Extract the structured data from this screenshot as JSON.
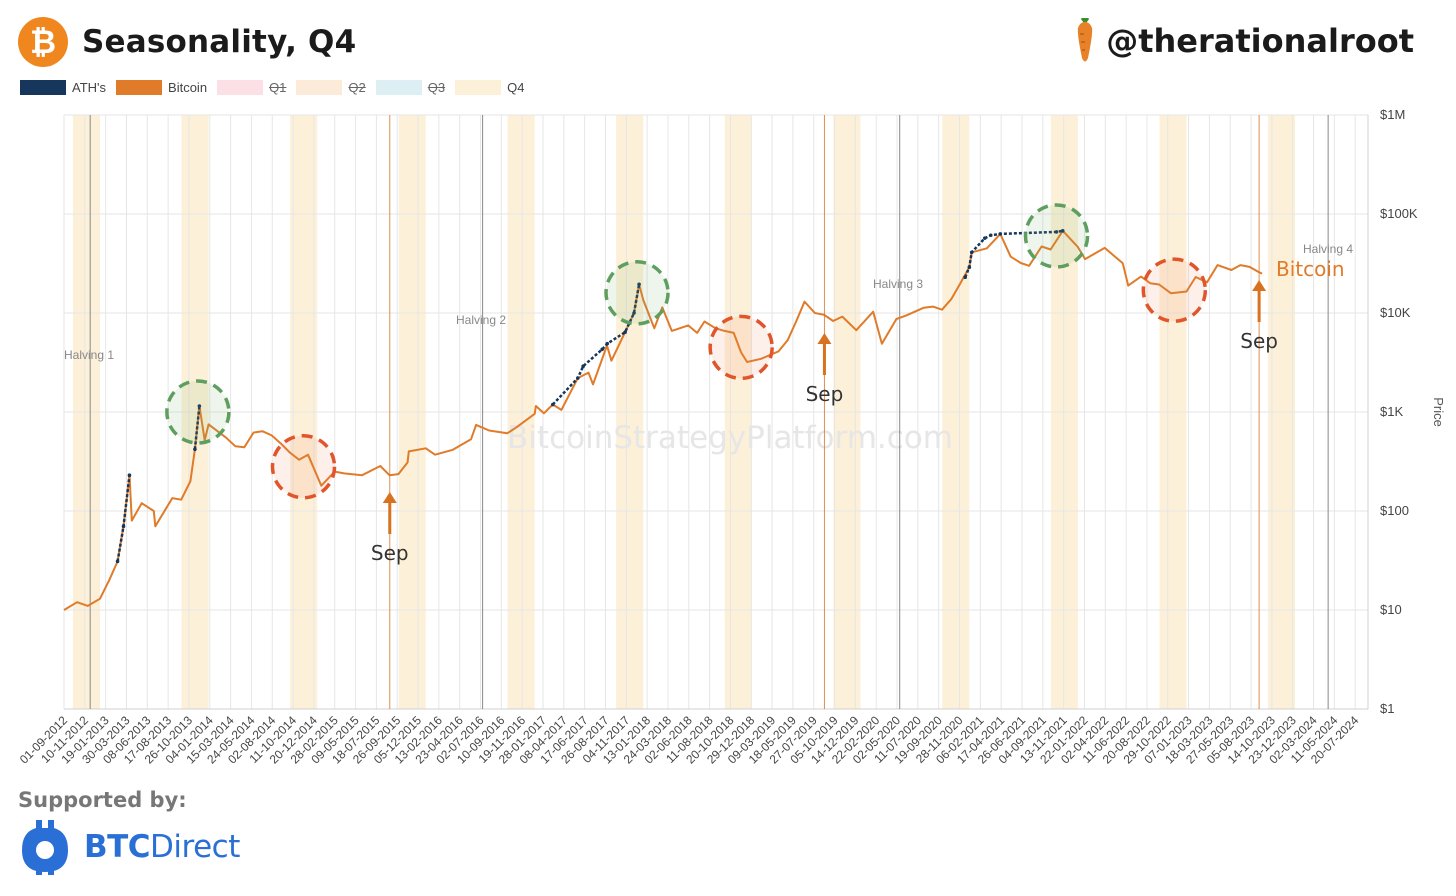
{
  "header": {
    "logo_icon": "bitcoin-icon",
    "logo_glyph": "₿",
    "title": "Seasonality, Q4",
    "handle_icon": "carrot-icon",
    "handle": "@therationalroot"
  },
  "legend": {
    "items": [
      {
        "label": "ATH's",
        "color": "#16365C",
        "hidden": false
      },
      {
        "label": "Bitcoin",
        "color": "#E07B2A",
        "hidden": false
      },
      {
        "label": "Q1",
        "color": "#FBE0E6",
        "hidden": true
      },
      {
        "label": "Q2",
        "color": "#FDEBD9",
        "hidden": true
      },
      {
        "label": "Q3",
        "color": "#DDEFF3",
        "hidden": true
      },
      {
        "label": "Q4",
        "color": "#FDF0D8",
        "hidden": false
      }
    ]
  },
  "watermark": "BitcoinStrategyPlatform.com",
  "footer": {
    "supported_by": "Supported by:",
    "sponsor_icon": "btc-direct-logo-icon",
    "sponsor_bold": "BTC",
    "sponsor_light": "Direct"
  },
  "colors": {
    "bitcoin": "#E07B2A",
    "ath": "#16365C",
    "q4_band": "#FDF0D8",
    "green_circle": "#5E9E5E",
    "red_circle": "#E0552A",
    "arrow": "#D9721E",
    "halving_line": "#888888"
  },
  "chart_data": {
    "type": "line",
    "title": "Seasonality, Q4",
    "ylabel": "Price",
    "yscale": "log",
    "ylim": [
      1,
      1000000
    ],
    "xlim": [
      "2012-09-01",
      "2024-09-01"
    ],
    "grid": true,
    "legend_position": "top-left",
    "y_tick_labels": [
      "$1",
      "$10",
      "$100",
      "$1K",
      "$10K",
      "$100K",
      "$1M"
    ],
    "y_tick_values": [
      1,
      10,
      100,
      1000,
      10000,
      100000,
      1000000
    ],
    "x_tick_labels": [
      "01-09-2012",
      "10-11-2012",
      "19-01-2013",
      "30-03-2013",
      "08-06-2013",
      "17-08-2013",
      "26-10-2013",
      "04-01-2014",
      "15-03-2014",
      "24-05-2014",
      "02-08-2014",
      "11-10-2014",
      "20-12-2014",
      "28-02-2015",
      "09-05-2015",
      "18-07-2015",
      "26-09-2015",
      "05-12-2015",
      "13-02-2016",
      "23-04-2016",
      "02-07-2016",
      "10-09-2016",
      "19-11-2016",
      "28-01-2017",
      "08-04-2017",
      "17-06-2017",
      "26-08-2017",
      "04-11-2017",
      "13-01-2018",
      "24-03-2018",
      "02-06-2018",
      "11-08-2018",
      "20-10-2018",
      "29-12-2018",
      "09-03-2019",
      "18-05-2019",
      "27-07-2019",
      "05-10-2019",
      "14-12-2019",
      "22-02-2020",
      "02-05-2020",
      "11-07-2020",
      "19-09-2020",
      "28-11-2020",
      "06-02-2021",
      "17-04-2021",
      "26-06-2021",
      "04-09-2021",
      "13-11-2021",
      "22-01-2022",
      "02-04-2022",
      "11-06-2022",
      "20-08-2022",
      "29-10-2022",
      "07-01-2023",
      "18-03-2023",
      "27-05-2023",
      "05-08-2023",
      "14-10-2023",
      "23-12-2023",
      "02-03-2024",
      "11-05-2024",
      "20-07-2024"
    ],
    "x_tick_dates": [
      "2012-09-01",
      "2012-11-10",
      "2013-01-19",
      "2013-03-30",
      "2013-06-08",
      "2013-08-17",
      "2013-10-26",
      "2014-01-04",
      "2014-03-15",
      "2014-05-24",
      "2014-08-02",
      "2014-10-11",
      "2014-12-20",
      "2015-02-28",
      "2015-05-09",
      "2015-07-18",
      "2015-09-26",
      "2015-12-05",
      "2016-02-13",
      "2016-04-23",
      "2016-07-02",
      "2016-09-10",
      "2016-11-19",
      "2017-01-28",
      "2017-04-08",
      "2017-06-17",
      "2017-08-26",
      "2017-11-04",
      "2018-01-13",
      "2018-03-24",
      "2018-06-02",
      "2018-08-11",
      "2018-10-20",
      "2018-12-29",
      "2019-03-09",
      "2019-05-18",
      "2019-07-27",
      "2019-10-05",
      "2019-12-14",
      "2020-02-22",
      "2020-05-02",
      "2020-07-11",
      "2020-09-19",
      "2020-11-28",
      "2021-02-06",
      "2021-04-17",
      "2021-06-26",
      "2021-09-04",
      "2021-11-13",
      "2022-01-22",
      "2022-04-02",
      "2022-06-11",
      "2022-08-20",
      "2022-10-29",
      "2023-01-07",
      "2023-03-18",
      "2023-05-27",
      "2023-08-05",
      "2023-10-14",
      "2023-12-23",
      "2024-03-02",
      "2024-05-11",
      "2024-07-20"
    ],
    "q4_bands": [
      [
        "2012-10-01",
        "2012-12-31"
      ],
      [
        "2013-10-01",
        "2013-12-31"
      ],
      [
        "2014-10-01",
        "2014-12-31"
      ],
      [
        "2015-10-01",
        "2015-12-31"
      ],
      [
        "2016-10-01",
        "2016-12-31"
      ],
      [
        "2017-10-01",
        "2017-12-31"
      ],
      [
        "2018-10-01",
        "2018-12-31"
      ],
      [
        "2019-10-01",
        "2019-12-31"
      ],
      [
        "2020-10-01",
        "2020-12-31"
      ],
      [
        "2021-10-01",
        "2021-12-31"
      ],
      [
        "2022-10-01",
        "2022-12-31"
      ],
      [
        "2023-10-01",
        "2023-12-31"
      ]
    ],
    "halvings": [
      {
        "label": "Halving 1",
        "date": "2012-11-28"
      },
      {
        "label": "Halving 2",
        "date": "2016-07-09"
      },
      {
        "label": "Halving 3",
        "date": "2020-05-11"
      },
      {
        "label": "Halving 4",
        "date": "2024-04-20"
      }
    ],
    "sep_markers": [
      {
        "label": "Sep",
        "date": "2015-09-01"
      },
      {
        "label": "Sep",
        "date": "2019-09-01"
      },
      {
        "label": "Sep",
        "date": "2023-09-01"
      }
    ],
    "green_circles": [
      {
        "date": "2013-11-25",
        "value": 1000
      },
      {
        "date": "2017-12-10",
        "value": 16000
      },
      {
        "date": "2021-10-20",
        "value": 60000
      }
    ],
    "red_circles": [
      {
        "date": "2014-11-15",
        "value": 280
      },
      {
        "date": "2018-11-25",
        "value": 4500
      },
      {
        "date": "2022-11-20",
        "value": 17000
      }
    ],
    "series_label": "Bitcoin",
    "series": [
      {
        "name": "Bitcoin",
        "color": "#E07B2A",
        "x": [
          "2012-09-01",
          "2012-10-15",
          "2012-11-20",
          "2012-12-31",
          "2013-01-31",
          "2013-02-28",
          "2013-03-20",
          "2013-04-09",
          "2013-04-17",
          "2013-05-20",
          "2013-06-30",
          "2013-07-05",
          "2013-08-31",
          "2013-09-30",
          "2013-10-31",
          "2013-11-15",
          "2013-11-30",
          "2013-12-18",
          "2013-12-31",
          "2014-02-28",
          "2014-03-31",
          "2014-04-30",
          "2014-05-31",
          "2014-06-30",
          "2014-07-31",
          "2014-08-31",
          "2014-09-30",
          "2014-10-31",
          "2014-11-30",
          "2015-01-14",
          "2015-02-28",
          "2015-03-31",
          "2015-05-31",
          "2015-07-31",
          "2015-08-31",
          "2015-09-30",
          "2015-10-31",
          "2015-11-04",
          "2015-12-31",
          "2016-01-31",
          "2016-03-31",
          "2016-05-31",
          "2016-06-17",
          "2016-07-31",
          "2016-09-30",
          "2016-10-31",
          "2016-12-31",
          "2017-01-04",
          "2017-01-31",
          "2017-03-02",
          "2017-03-31",
          "2017-05-25",
          "2017-06-30",
          "2017-07-15",
          "2017-08-31",
          "2017-09-15",
          "2017-10-31",
          "2017-11-30",
          "2017-12-17",
          "2017-12-31",
          "2018-02-06",
          "2018-03-05",
          "2018-04-06",
          "2018-05-31",
          "2018-06-30",
          "2018-07-25",
          "2018-08-31",
          "2018-09-30",
          "2018-10-31",
          "2018-11-25",
          "2018-12-15",
          "2019-01-31",
          "2019-03-31",
          "2019-04-30",
          "2019-05-31",
          "2019-06-26",
          "2019-07-31",
          "2019-08-31",
          "2019-09-30",
          "2019-10-31",
          "2019-12-17",
          "2020-02-12",
          "2020-03-12",
          "2020-04-30",
          "2020-05-31",
          "2020-07-31",
          "2020-08-31",
          "2020-09-30",
          "2020-10-31",
          "2020-11-30",
          "2020-12-31",
          "2021-01-08",
          "2021-02-28",
          "2021-04-14",
          "2021-05-19",
          "2021-06-22",
          "2021-07-20",
          "2021-08-31",
          "2021-09-30",
          "2021-11-10",
          "2021-12-31",
          "2022-01-24",
          "2022-03-31",
          "2022-05-31",
          "2022-06-18",
          "2022-07-31",
          "2022-08-31",
          "2022-09-30",
          "2022-11-09",
          "2022-12-31",
          "2023-01-31",
          "2023-03-10",
          "2023-04-14",
          "2023-05-31",
          "2023-06-30",
          "2023-07-31",
          "2023-08-31",
          "2023-09-11"
        ],
        "values": [
          10,
          12,
          11,
          13,
          20,
          31,
          70,
          230,
          80,
          120,
          100,
          70,
          135,
          130,
          200,
          420,
          1150,
          520,
          750,
          550,
          450,
          440,
          620,
          640,
          580,
          480,
          390,
          330,
          370,
          180,
          250,
          240,
          230,
          285,
          230,
          236,
          310,
          400,
          430,
          370,
          415,
          530,
          740,
          650,
          610,
          700,
          960,
          1150,
          970,
          1190,
          1050,
          2200,
          2500,
          1900,
          4700,
          3300,
          6400,
          10000,
          19500,
          13500,
          7000,
          11400,
          6600,
          7500,
          6300,
          8200,
          7000,
          6600,
          6300,
          4000,
          3200,
          3450,
          4100,
          5300,
          8500,
          13000,
          10000,
          9600,
          8300,
          9200,
          6700,
          10300,
          4900,
          8700,
          9400,
          11300,
          11600,
          10800,
          13800,
          19700,
          29000,
          41000,
          45000,
          63000,
          37000,
          32000,
          30000,
          47000,
          43800,
          67600,
          46300,
          35000,
          45500,
          31800,
          18900,
          23300,
          20000,
          19400,
          15800,
          16500,
          23100,
          20400,
          30500,
          27200,
          30500,
          29200,
          25900,
          25000
        ]
      },
      {
        "name": "ATH's",
        "color": "#16365C",
        "x": [
          "2013-02-28",
          "2013-03-20",
          "2013-04-09",
          "2013-11-15",
          "2013-11-30",
          "2017-03-02",
          "2017-05-25",
          "2017-06-12",
          "2017-08-15",
          "2017-09-01",
          "2017-10-31",
          "2017-11-30",
          "2017-12-17",
          "2020-12-17",
          "2020-12-31",
          "2021-01-08",
          "2021-02-21",
          "2021-03-13",
          "2021-04-14",
          "2021-10-20",
          "2021-11-10"
        ],
        "values": [
          31,
          70,
          230,
          420,
          1150,
          1190,
          2200,
          2900,
          4300,
          4900,
          6400,
          10000,
          19500,
          23000,
          29000,
          41000,
          57000,
          61000,
          63000,
          66000,
          67600
        ]
      }
    ]
  }
}
